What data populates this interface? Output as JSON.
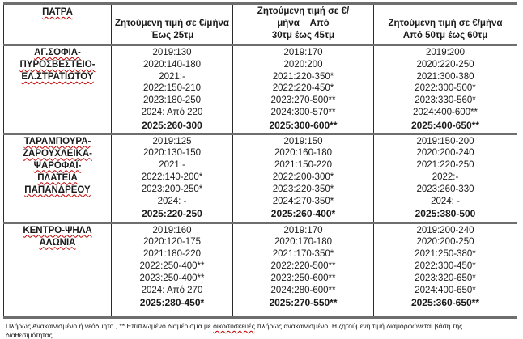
{
  "colors": {
    "squiggle_color": "#c00000",
    "border_horizontal": "#6e6e6e",
    "border_vertical": "#2b2b2b",
    "text_color": "#1a1a1a"
  },
  "table": {
    "region_header": "ΠΑΤΡΑ",
    "column_headers": [
      {
        "line1": "Ζητούμενη τιμή σε €/μήνα",
        "line2": "Έως 25τμ"
      },
      {
        "line1": "Ζητούμενη τιμή σε €/μήνα    Από",
        "line2": "30τμ έως 45τμ"
      },
      {
        "line1": "Ζητούμενη τιμή σε €/μήνα",
        "line2": "Από 50τμ έως 60τμ"
      }
    ],
    "rows": [
      {
        "area_lines": [
          "ΑΓ.ΣΟΦΙΑ-",
          "ΠΥΡΟΣΒΕΣΤΕΙΟ-",
          "ΕΛ.ΣΤΡΑΤΙΩΤΟΥ"
        ],
        "cells": [
          {
            "lines": [
              "2019:130",
              "2020:140-180",
              "2021:-",
              "2022:150-210",
              "2023:180-250",
              "2024: Από 220",
              "2025:260-300"
            ]
          },
          {
            "lines": [
              "2019:170",
              "2020:200",
              "2021:220-350*",
              "2022:220-450*",
              "2023:270-500**",
              "2024:300-570**",
              "2025:300-600**"
            ]
          },
          {
            "lines": [
              "2019:200",
              "2020:220-250",
              "2021:300-380",
              "2022:300-500*",
              "2023:330-560*",
              "2024:400-600**",
              "2025:400-650**"
            ]
          }
        ]
      },
      {
        "area_lines": [
          "ΤΑΡΑΜΠΟΥΡΑ-",
          "ΖΑΡΟΥΧΛΕΙΚΑ-ΨΑΡΟΦΑΪ-",
          "ΠΛΑΤΕΙΑ ΠΑΠΑΝΔΡΕΟΥ"
        ],
        "cells": [
          {
            "lines": [
              "2019:125",
              "2020:130-150",
              "2021:-",
              "2022:140-200*",
              "2023:200-250*",
              "2024: -",
              "2025:220-250"
            ]
          },
          {
            "lines": [
              "2019:150",
              "2020:160-180",
              "2021:150-220",
              "2022:200-300*",
              "2023:220-350*",
              "2024:270-350*",
              "2025:260-400*"
            ]
          },
          {
            "lines": [
              "2019:150-200",
              "2020:200-240",
              "2021:220-250",
              "2022:-",
              "2023:260-330",
              "2024: -",
              "2025:380-500"
            ]
          }
        ]
      },
      {
        "area_lines": [
          "ΚΕΝΤΡΟ-ΨΗΛΑ ΑΛΩΝΙΑ"
        ],
        "cells": [
          {
            "lines": [
              "2019:160",
              "2020:120-175",
              "2021:180-220",
              "2022:250-400**",
              "2023:250-400**",
              "2024: Από 270",
              "2025:280-450*"
            ]
          },
          {
            "lines": [
              "2019:170",
              "2020:170-180",
              "2021:170-350*",
              "2022:220-500**",
              "2023:250-600**",
              "2024:280-600**",
              "2025:270-550**"
            ]
          },
          {
            "lines": [
              "2019:200-240",
              "2020:200-250",
              "2021:250-380*",
              "2022:300-450*",
              "2023:320-650*",
              "2024:400-650*",
              "2025:360-650**"
            ]
          }
        ]
      }
    ]
  },
  "footnote": {
    "part1": "Πλήρως Ανακαινισμένο ή νεόδμητο , ** Επιπλωμένο διαμέρισμα με ",
    "misspelled_word": "οικοσυσκευές",
    "part2": " πλήρως ανακαινισμένο. Η ζητούμενη τιμή διαμορφώνεται βάση της διαθεσιμότητας."
  }
}
